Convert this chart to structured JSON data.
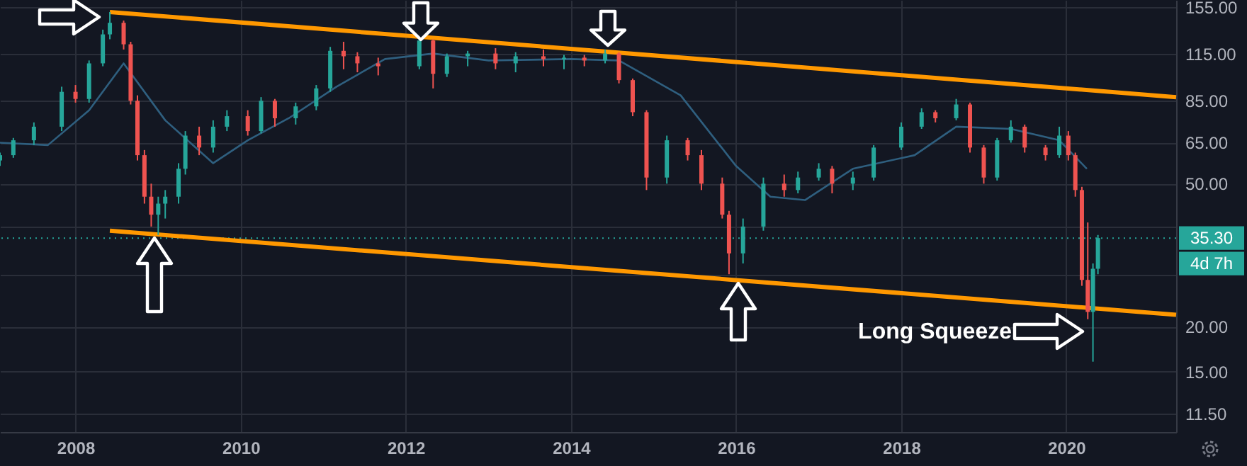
{
  "chart_data": {
    "type": "candlestick",
    "x": [
      "2007-02",
      "2007-04",
      "2007-07",
      "2007-11",
      "2008-01",
      "2008-03",
      "2008-05",
      "2008-06",
      "2008-08",
      "2008-09",
      "2008-10",
      "2008-11",
      "2008-12",
      "2009-01",
      "2009-02",
      "2009-04",
      "2009-05",
      "2009-07",
      "2009-09",
      "2009-11",
      "2010-02",
      "2010-04",
      "2010-06",
      "2010-09",
      "2010-12",
      "2011-02",
      "2011-04",
      "2011-06",
      "2011-09",
      "2012-03",
      "2012-05",
      "2012-07",
      "2012-10",
      "2013-02",
      "2013-05",
      "2013-09",
      "2013-12",
      "2014-03",
      "2014-06",
      "2014-08",
      "2014-10",
      "2014-12",
      "2015-03",
      "2015-06",
      "2015-08",
      "2015-11",
      "2015-12",
      "2016-02",
      "2016-05",
      "2016-08",
      "2016-10",
      "2017-01",
      "2017-03",
      "2017-06",
      "2017-09",
      "2018-01",
      "2018-04",
      "2018-06",
      "2018-09",
      "2018-11",
      "2019-01",
      "2019-03",
      "2019-05",
      "2019-07",
      "2019-10",
      "2019-12",
      "2020-01-10",
      "2020-02-10",
      "2020-03-10",
      "2020-04-05",
      "2020-04-28",
      "2020-05-20"
    ],
    "ohlc": [
      [
        58,
        61,
        56,
        60
      ],
      [
        60,
        67,
        59,
        66
      ],
      [
        66,
        74,
        64,
        72
      ],
      [
        72,
        93,
        70,
        90
      ],
      [
        90,
        94,
        84,
        86
      ],
      [
        86,
        110,
        84,
        108
      ],
      [
        108,
        134,
        106,
        130
      ],
      [
        130,
        150,
        126,
        140
      ],
      [
        140,
        142,
        118,
        122
      ],
      [
        122,
        124,
        83,
        85
      ],
      [
        85,
        88,
        58,
        60
      ],
      [
        60,
        62,
        44,
        46
      ],
      [
        46,
        50,
        38,
        41
      ],
      [
        41,
        46,
        36,
        44
      ],
      [
        44,
        48,
        40,
        46
      ],
      [
        46,
        57,
        44,
        55
      ],
      [
        55,
        70,
        53,
        68
      ],
      [
        68,
        72,
        60,
        63
      ],
      [
        63,
        75,
        61,
        72
      ],
      [
        72,
        80,
        70,
        77
      ],
      [
        77,
        80,
        68,
        70
      ],
      [
        70,
        87,
        69,
        85
      ],
      [
        85,
        86,
        72,
        76
      ],
      [
        76,
        84,
        73,
        82
      ],
      [
        82,
        94,
        80,
        92
      ],
      [
        92,
        120,
        90,
        117
      ],
      [
        117,
        124,
        104,
        113
      ],
      [
        113,
        116,
        102,
        108
      ],
      [
        108,
        112,
        100,
        106
      ],
      [
        106,
        128,
        104,
        125
      ],
      [
        125,
        126,
        92,
        101
      ],
      [
        101,
        115,
        99,
        113
      ],
      [
        113,
        117,
        106,
        115
      ],
      [
        115,
        119,
        104,
        108
      ],
      [
        108,
        116,
        102,
        113
      ],
      [
        113,
        118,
        106,
        111
      ],
      [
        111,
        114,
        104,
        112
      ],
      [
        112,
        114,
        106,
        110
      ],
      [
        110,
        118,
        108,
        115
      ],
      [
        115,
        116,
        95,
        97
      ],
      [
        97,
        98,
        77,
        79
      ],
      [
        79,
        80,
        48,
        52
      ],
      [
        52,
        68,
        50,
        66
      ],
      [
        66,
        67,
        58,
        60
      ],
      [
        60,
        62,
        48,
        50
      ],
      [
        50,
        52,
        40,
        41
      ],
      [
        41,
        42,
        28,
        32
      ],
      [
        32,
        40,
        30,
        38
      ],
      [
        38,
        52,
        37,
        50
      ],
      [
        50,
        53,
        46,
        48
      ],
      [
        48,
        54,
        47,
        52
      ],
      [
        52,
        57,
        51,
        55
      ],
      [
        55,
        56,
        47,
        50
      ],
      [
        50,
        54,
        48,
        52
      ],
      [
        52,
        64,
        51,
        63
      ],
      [
        63,
        74,
        62,
        72
      ],
      [
        72,
        81,
        71,
        79
      ],
      [
        79,
        80,
        74,
        76
      ],
      [
        76,
        86,
        75,
        83
      ],
      [
        83,
        84,
        61,
        63
      ],
      [
        63,
        64,
        50,
        52
      ],
      [
        52,
        67,
        51,
        66
      ],
      [
        66,
        75,
        65,
        72
      ],
      [
        72,
        73,
        61,
        63
      ],
      [
        63,
        64,
        58,
        60
      ],
      [
        60,
        72,
        59,
        68
      ],
      [
        68,
        70,
        58,
        60
      ],
      [
        60,
        61,
        46,
        48
      ],
      [
        48,
        49,
        26,
        27
      ],
      [
        27,
        39,
        21,
        22
      ],
      [
        22,
        30,
        16,
        29
      ],
      [
        29,
        36,
        28,
        35.3
      ]
    ],
    "series": [
      {
        "type": "line",
        "color": "#ff9800",
        "x": [
          "2008-06",
          "2021-05"
        ],
        "values": [
          150,
          87
        ]
      },
      {
        "type": "line",
        "color": "#ff9800",
        "x": [
          "2008-06",
          "2021-05"
        ],
        "values": [
          37,
          21.6
        ]
      },
      {
        "type": "line",
        "color": "#2f5f7f",
        "x": [
          "2007-02",
          "2007-09",
          "2008-03",
          "2008-08",
          "2009-02",
          "2009-09",
          "2010-02",
          "2010-08",
          "2011-03",
          "2011-10",
          "2012-05",
          "2013-01",
          "2014-01",
          "2014-08",
          "2015-05",
          "2016-01",
          "2016-06",
          "2016-11",
          "2017-06",
          "2018-03",
          "2018-09",
          "2019-05",
          "2019-12",
          "2020-04"
        ],
        "values": [
          65,
          64,
          80,
          108,
          75,
          57,
          66,
          76,
          93,
          111,
          115,
          110,
          111,
          110,
          88,
          56,
          46,
          45,
          55,
          60,
          72,
          71,
          66,
          55
        ]
      }
    ],
    "ref_lines": [
      {
        "axis": "y",
        "value": 35.3,
        "label": "35.30",
        "color": "#26a69a",
        "line_style": "dotted"
      }
    ],
    "annotations": [
      "4d 7h",
      "Long Squeeze"
    ],
    "log": true,
    "grid": true,
    "xlim": [
      "2007-02",
      "2021-05"
    ],
    "xticks": [
      "2008",
      "2010",
      "2012",
      "2014",
      "2016",
      "2018",
      "2020"
    ],
    "ylim": [
      10.2,
      162
    ],
    "yticks": [
      {
        "value": 155,
        "label": "155.00"
      },
      {
        "value": 115,
        "label": "115.00"
      },
      {
        "value": 85,
        "label": "85.00"
      },
      {
        "value": 65,
        "label": "65.00"
      },
      {
        "value": 50,
        "label": "50.00"
      },
      {
        "value": 38,
        "label": null
      },
      {
        "value": 28,
        "label": null
      },
      {
        "value": 20,
        "label": "20.00"
      },
      {
        "value": 15,
        "label": "15.00"
      },
      {
        "value": 11.5,
        "label": "11.50"
      }
    ]
  }
}
